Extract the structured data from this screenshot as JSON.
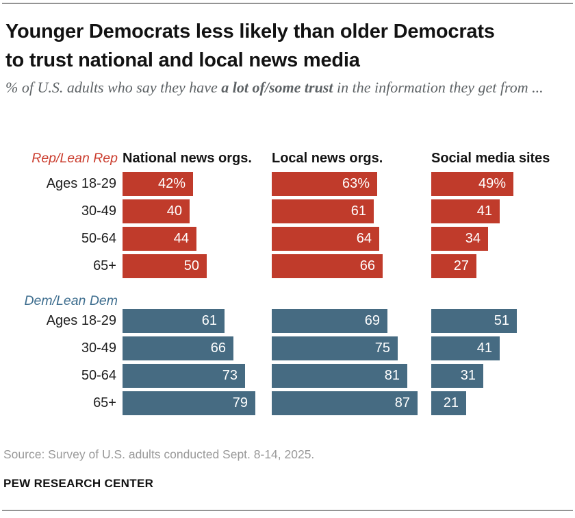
{
  "header": {
    "title_lines": [
      "Younger Democrats less likely than older Democrats",
      "to trust national and local news media"
    ],
    "subtitle_prefix": "% of U.S. adults who say they have ",
    "subtitle_bold": "a lot of/some trust",
    "subtitle_suffix": " in the information they get from ..."
  },
  "chart_data": {
    "type": "bar",
    "orientation": "horizontal",
    "unit": "%",
    "xlim": [
      0,
      100
    ],
    "grid": false,
    "legend": "none",
    "columns": [
      "National news orgs.",
      "Local news orgs.",
      "Social media sites"
    ],
    "row_categories": [
      "Ages 18-29",
      "30-49",
      "50-64",
      "65+"
    ],
    "groups": [
      {
        "label": "Rep/Lean Rep",
        "color": "#c03b2b",
        "label_color": "#cb3d2e",
        "rows": [
          {
            "category": "Ages 18-29",
            "values": [
              42,
              63,
              49
            ],
            "display": [
              "42%",
              "63%",
              "49%"
            ]
          },
          {
            "category": "30-49",
            "values": [
              40,
              61,
              41
            ],
            "display": [
              "40",
              "61",
              "41"
            ]
          },
          {
            "category": "50-64",
            "values": [
              44,
              64,
              34
            ],
            "display": [
              "44",
              "64",
              "34"
            ]
          },
          {
            "category": "65+",
            "values": [
              50,
              66,
              27
            ],
            "display": [
              "50",
              "66",
              "27"
            ]
          }
        ]
      },
      {
        "label": "Dem/Lean Dem",
        "color": "#466b82",
        "label_color": "#3d6d8e",
        "rows": [
          {
            "category": "Ages 18-29",
            "values": [
              61,
              69,
              51
            ],
            "display": [
              "61",
              "69",
              "51"
            ]
          },
          {
            "category": "30-49",
            "values": [
              66,
              75,
              41
            ],
            "display": [
              "66",
              "75",
              "41"
            ]
          },
          {
            "category": "50-64",
            "values": [
              73,
              81,
              31
            ],
            "display": [
              "73",
              "81",
              "31"
            ]
          },
          {
            "category": "65+",
            "values": [
              79,
              87,
              21
            ],
            "display": [
              "79",
              "87",
              "21"
            ]
          }
        ]
      }
    ]
  },
  "footer": {
    "source": "Source: Survey of U.S. adults conducted Sept. 8-14, 2025.",
    "brand": "PEW RESEARCH CENTER"
  }
}
